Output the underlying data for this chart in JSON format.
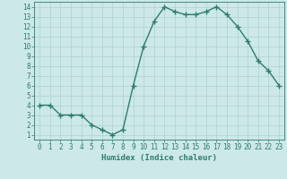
{
  "x": [
    0,
    1,
    2,
    3,
    4,
    5,
    6,
    7,
    8,
    9,
    10,
    11,
    12,
    13,
    14,
    15,
    16,
    17,
    18,
    19,
    20,
    21,
    22,
    23
  ],
  "y": [
    4,
    4,
    3,
    3,
    3,
    2,
    1.5,
    1,
    1.5,
    6,
    10,
    12.5,
    14,
    13.5,
    13.2,
    13.2,
    13.5,
    14,
    13.2,
    12,
    10.5,
    8.5,
    7.5,
    6
  ],
  "line_color": "#2e7d6e",
  "marker": "+",
  "marker_size": 4,
  "bg_color": "#cce8e8",
  "grid_color": "#b0d0d0",
  "xlabel": "Humidex (Indice chaleur)",
  "xlim": [
    -0.5,
    23.5
  ],
  "ylim": [
    0.5,
    14.5
  ],
  "ytick_values": [
    1,
    2,
    3,
    4,
    5,
    6,
    7,
    8,
    9,
    10,
    11,
    12,
    13,
    14
  ],
  "tick_color": "#2e7d6e",
  "label_fontsize": 5.5,
  "xlabel_fontsize": 6.5,
  "linewidth": 1.0
}
